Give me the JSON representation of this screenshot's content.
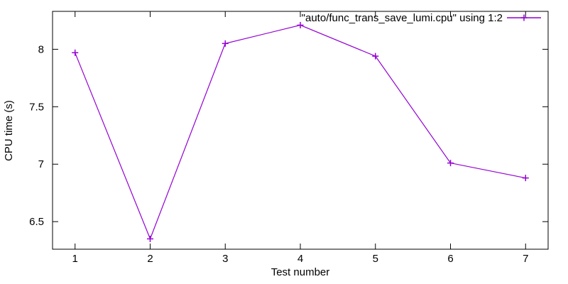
{
  "chart_data": {
    "type": "line",
    "title": "",
    "xlabel": "Test number",
    "ylabel": "CPU time (s)",
    "x": [
      1,
      2,
      3,
      4,
      5,
      6,
      7
    ],
    "series": [
      {
        "name": "\"auto/func_trans_save_lumi.cpu\" using 1:2",
        "color": "#9400d3",
        "marker": "plus",
        "values": [
          7.97,
          6.35,
          8.05,
          8.21,
          7.94,
          7.01,
          6.88
        ]
      }
    ],
    "x_ticks": [
      1,
      2,
      3,
      4,
      5,
      6,
      7
    ],
    "y_ticks": [
      6.5,
      7,
      7.5,
      8
    ],
    "xlim": [
      0.7,
      7.3
    ],
    "ylim": [
      6.26,
      8.33
    ],
    "grid": false,
    "legend_position": "top-right-inside",
    "border_color": "#000000",
    "text_color": "#000000",
    "background": "#ffffff"
  }
}
